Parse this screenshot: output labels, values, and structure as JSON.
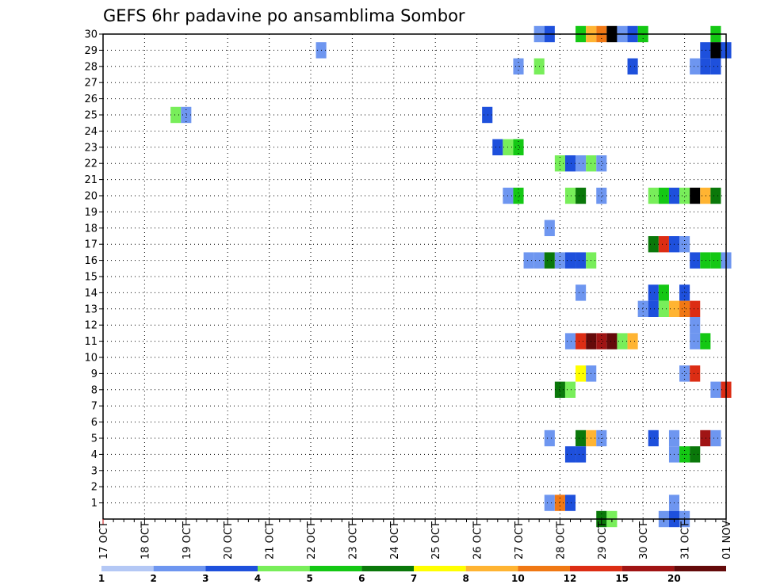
{
  "chart_data": {
    "type": "heatmap",
    "title": "GEFS 6hr padavine po ansamblima Sombor",
    "xlabel": "",
    "ylabel": "",
    "x_tick_labels": [
      "17 OCT",
      "18 OCT",
      "19 OCT",
      "20 OCT",
      "21 OCT",
      "22 OCT",
      "23 OCT",
      "24 OCT",
      "25 OCT",
      "26 OCT",
      "27 OCT",
      "28 OCT",
      "29 OCT",
      "30 OCT",
      "31 OCT",
      "01 NOV"
    ],
    "y_tick_labels": [
      "1",
      "2",
      "3",
      "4",
      "5",
      "6",
      "7",
      "8",
      "9",
      "10",
      "11",
      "12",
      "13",
      "14",
      "15",
      "16",
      "17",
      "18",
      "19",
      "20",
      "21",
      "22",
      "23",
      "24",
      "25",
      "26",
      "27",
      "28",
      "29",
      "30"
    ],
    "xlim": [
      0,
      60
    ],
    "ylim": [
      0,
      30
    ],
    "grid": true,
    "legend": {
      "position": "bottom",
      "labels": [
        "1",
        "2",
        "3",
        "4",
        "5",
        "6",
        "7",
        "8",
        "10",
        "12",
        "15",
        "20"
      ],
      "colors": [
        "#b4c8f5",
        "#6e96f0",
        "#1e50dc",
        "#78ee5a",
        "#14c814",
        "#0a780a",
        "#ffff00",
        "#ffb432",
        "#f07814",
        "#dc2d14",
        "#a01414",
        "#640a0a"
      ]
    },
    "cells": [
      [
        42,
        30,
        1
      ],
      [
        43,
        30,
        2
      ],
      [
        46,
        30,
        4
      ],
      [
        47,
        30,
        7
      ],
      [
        48,
        30,
        8
      ],
      [
        49,
        30,
        12
      ],
      [
        50,
        30,
        1
      ],
      [
        51,
        30,
        2
      ],
      [
        52,
        30,
        4
      ],
      [
        59,
        30,
        4
      ],
      [
        21,
        29,
        1
      ],
      [
        58,
        29,
        2
      ],
      [
        59,
        29,
        12
      ],
      [
        60,
        29,
        2
      ],
      [
        40,
        28,
        1
      ],
      [
        42,
        28,
        3
      ],
      [
        51,
        28,
        2
      ],
      [
        57,
        28,
        1
      ],
      [
        58,
        28,
        2
      ],
      [
        59,
        28,
        2
      ],
      [
        7,
        25,
        3
      ],
      [
        8,
        25,
        1
      ],
      [
        37,
        25,
        2
      ],
      [
        38,
        23,
        2
      ],
      [
        39,
        23,
        3
      ],
      [
        40,
        23,
        4
      ],
      [
        44,
        22,
        3
      ],
      [
        45,
        22,
        2
      ],
      [
        46,
        22,
        1
      ],
      [
        47,
        22,
        3
      ],
      [
        48,
        22,
        1
      ],
      [
        39,
        20,
        1
      ],
      [
        40,
        20,
        4
      ],
      [
        45,
        20,
        3
      ],
      [
        46,
        20,
        5
      ],
      [
        48,
        20,
        1
      ],
      [
        53,
        20,
        3
      ],
      [
        54,
        20,
        4
      ],
      [
        55,
        20,
        2
      ],
      [
        56,
        20,
        3
      ],
      [
        57,
        20,
        12
      ],
      [
        58,
        20,
        7
      ],
      [
        59,
        20,
        5
      ],
      [
        43,
        18,
        1
      ],
      [
        53,
        17,
        5
      ],
      [
        54,
        17,
        9
      ],
      [
        55,
        17,
        2
      ],
      [
        56,
        17,
        1
      ],
      [
        41,
        16,
        1
      ],
      [
        42,
        16,
        1
      ],
      [
        43,
        16,
        5
      ],
      [
        44,
        16,
        1
      ],
      [
        45,
        16,
        2
      ],
      [
        46,
        16,
        2
      ],
      [
        47,
        16,
        3
      ],
      [
        57,
        16,
        2
      ],
      [
        58,
        16,
        4
      ],
      [
        59,
        16,
        4
      ],
      [
        60,
        16,
        1
      ],
      [
        46,
        14,
        1
      ],
      [
        53,
        14,
        2
      ],
      [
        54,
        14,
        4
      ],
      [
        56,
        14,
        2
      ],
      [
        52,
        13,
        1
      ],
      [
        53,
        13,
        2
      ],
      [
        54,
        13,
        3
      ],
      [
        55,
        13,
        7
      ],
      [
        56,
        13,
        8
      ],
      [
        57,
        13,
        9
      ],
      [
        57,
        12,
        1
      ],
      [
        45,
        11,
        1
      ],
      [
        46,
        11,
        9
      ],
      [
        47,
        11,
        11
      ],
      [
        48,
        11,
        10
      ],
      [
        49,
        11,
        11
      ],
      [
        50,
        11,
        3
      ],
      [
        51,
        11,
        7
      ],
      [
        57,
        11,
        1
      ],
      [
        58,
        11,
        4
      ],
      [
        46,
        9,
        6
      ],
      [
        47,
        9,
        1
      ],
      [
        56,
        9,
        1
      ],
      [
        57,
        9,
        9
      ],
      [
        44,
        8,
        5
      ],
      [
        45,
        8,
        3
      ],
      [
        59,
        8,
        1
      ],
      [
        60,
        8,
        9
      ],
      [
        43,
        5,
        1
      ],
      [
        46,
        5,
        5
      ],
      [
        47,
        5,
        7
      ],
      [
        48,
        5,
        1
      ],
      [
        53,
        5,
        2
      ],
      [
        55,
        5,
        1
      ],
      [
        58,
        5,
        10
      ],
      [
        59,
        5,
        1
      ],
      [
        45,
        4,
        2
      ],
      [
        46,
        4,
        2
      ],
      [
        55,
        4,
        1
      ],
      [
        56,
        4,
        4
      ],
      [
        57,
        4,
        5
      ],
      [
        43,
        1,
        1
      ],
      [
        44,
        1,
        8
      ],
      [
        45,
        1,
        2
      ],
      [
        55,
        1,
        1
      ],
      [
        48,
        0,
        5
      ],
      [
        49,
        0,
        3
      ],
      [
        54,
        0,
        1
      ],
      [
        55,
        0,
        2
      ],
      [
        56,
        0,
        1
      ]
    ]
  }
}
